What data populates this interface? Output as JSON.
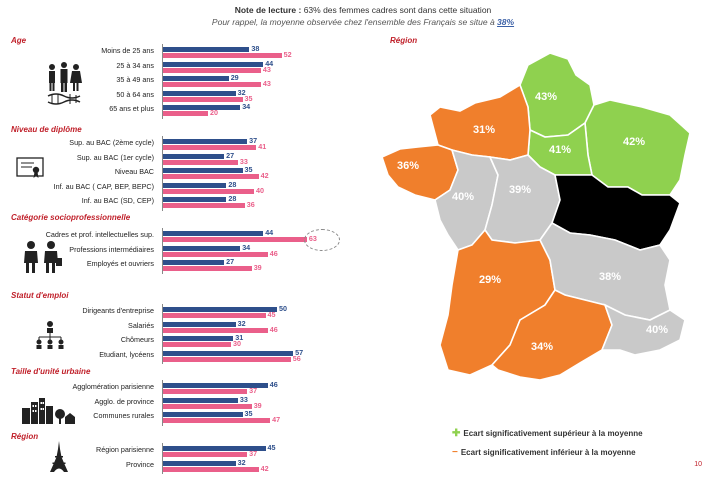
{
  "note": {
    "line1_label": "Note de lecture :",
    "line1_text": "63% des femmes cadres sont dans cette situation",
    "line2_text": "Pour rappel, la moyenne observée chez l'ensemble des Français se situe à",
    "line2_value": "38%"
  },
  "chart_data": [
    {
      "type": "bar",
      "orientation": "horizontal",
      "title": "Note de lecture : 63% des femmes cadres sont dans cette situation",
      "series_colors": [
        "#2e4f8b",
        "#ea5f8a"
      ],
      "groups": [
        {
          "title": "Age",
          "categories": [
            "Moins de 25 ans",
            "25 à 34 ans",
            "35 à 49 ans",
            "50 à 64 ans",
            "65 ans et plus"
          ],
          "series": [
            {
              "values": [
                38,
                44,
                29,
                32,
                34
              ]
            },
            {
              "values": [
                52,
                43,
                43,
                35,
                20
              ]
            }
          ]
        },
        {
          "title": "Niveau de diplôme",
          "categories": [
            "Sup. au BAC (2ème cycle)",
            "Sup. au BAC (1er cycle)",
            "Niveau BAC",
            "Inf. au BAC ( CAP, BEP, BEPC)",
            "Inf. au BAC (SD, CEP)"
          ],
          "series": [
            {
              "values": [
                37,
                27,
                35,
                28,
                28
              ]
            },
            {
              "values": [
                41,
                33,
                42,
                40,
                36
              ]
            }
          ]
        },
        {
          "title": "Catégorie socioprofessionnelle",
          "categories": [
            "Cadres et prof. intellectuelles sup.",
            "Professions intermédiaires",
            "Employés et ouvriers"
          ],
          "series": [
            {
              "values": [
                44,
                34,
                27
              ]
            },
            {
              "values": [
                63,
                46,
                39
              ]
            }
          ]
        },
        {
          "title": "Statut d'emploi",
          "categories": [
            "Dirigeants d'entreprise",
            "Salariés",
            "Chômeurs",
            "Etudiant, lycéens"
          ],
          "series": [
            {
              "values": [
                50,
                32,
                31,
                57
              ]
            },
            {
              "values": [
                45,
                46,
                30,
                56
              ]
            }
          ]
        },
        {
          "title": "Taille d'unité urbaine",
          "categories": [
            "Agglomération parisienne",
            "Agglo. de province",
            "Communes rurales"
          ],
          "series": [
            {
              "values": [
                46,
                33,
                35
              ]
            },
            {
              "values": [
                37,
                39,
                47
              ]
            }
          ]
        },
        {
          "title": "Région",
          "categories": [
            "Région parisienne",
            "Province"
          ],
          "series": [
            {
              "values": [
                45,
                32
              ]
            },
            {
              "values": [
                37,
                42
              ]
            }
          ]
        }
      ]
    },
    {
      "type": "map",
      "title": "Région",
      "regions": [
        {
          "label": "43%",
          "status": "superieur",
          "color": "#8fd14f"
        },
        {
          "label": "41%",
          "status": "superieur",
          "color": "#8fd14f"
        },
        {
          "label": "42%",
          "status": "superieur",
          "color": "#8fd14f"
        },
        {
          "label": "31%",
          "status": "inferieur",
          "color": "#f07f2c"
        },
        {
          "label": "36%",
          "status": "inferieur",
          "color": "#f07f2c"
        },
        {
          "label": "29%",
          "status": "inferieur",
          "color": "#f07f2c"
        },
        {
          "label": "34%",
          "status": "inferieur",
          "color": "#f07f2c"
        },
        {
          "label": "40%",
          "status": "neutre",
          "color": "#c9c9c9"
        },
        {
          "label": "39%",
          "status": "neutre",
          "color": "#c9c9c9"
        },
        {
          "label": "38%",
          "status": "neutre",
          "color": "#c9c9c9"
        },
        {
          "label": "40%",
          "status": "neutre",
          "color": "#c9c9c9"
        }
      ]
    }
  ],
  "legend": {
    "superieur_label": "Ecart significativement supérieur à la moyenne",
    "inferieur_label": "Ecart significativement inférieur à la moyenne",
    "superieur_color": "#8fd14f",
    "inferieur_color": "#f07f2c",
    "superieur_icon": "up-arrow-icon",
    "inferieur_icon": "down-arrow-icon"
  },
  "page_number": "10",
  "icons": [
    "people-dna-icon",
    "diploma-icon",
    "workers-icon",
    "org-chart-icon",
    "city-skyline-icon",
    "eiffel-tower-icon"
  ]
}
